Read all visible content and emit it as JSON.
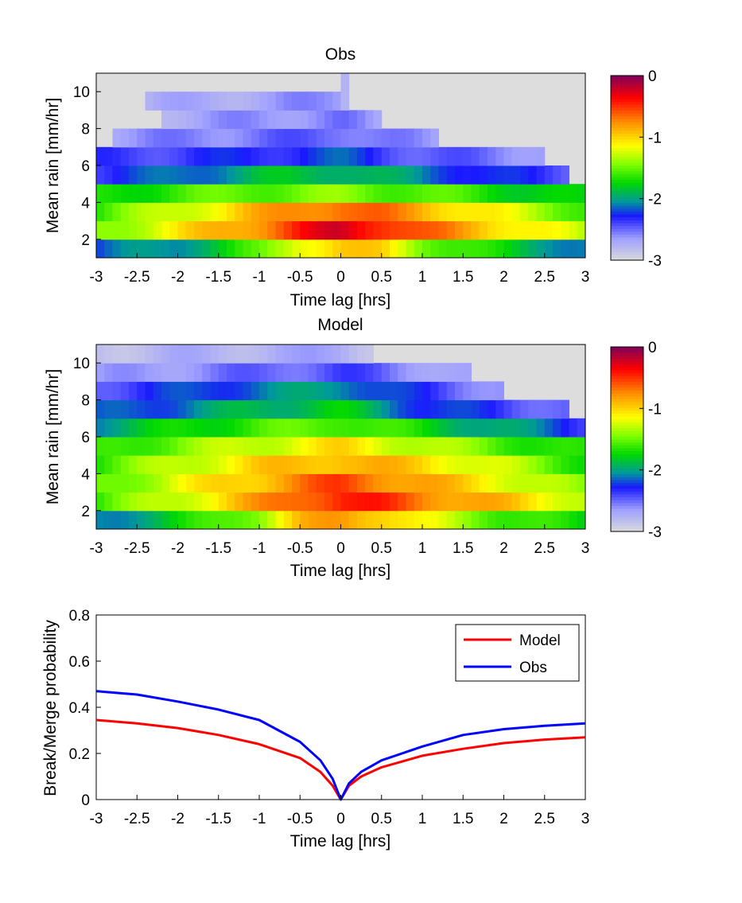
{
  "chart_data": [
    {
      "type": "heatmap",
      "title": "Obs",
      "xlabel": "Time lag [hrs]",
      "ylabel": "Mean rain [mm/hr]",
      "xlim": [
        -3,
        3
      ],
      "ylim": [
        1,
        11
      ],
      "xticks": [
        "-3",
        "-2.5",
        "-2",
        "-1.5",
        "-1",
        "-0.5",
        "0",
        "0.5",
        "1",
        "1.5",
        "2",
        "2.5",
        "3"
      ],
      "yticks": [
        "2",
        "4",
        "6",
        "8",
        "10"
      ],
      "colorbar": {
        "range": [
          -3,
          0
        ],
        "ticks": [
          "0",
          "-1",
          "-2",
          "-3"
        ]
      },
      "rows": [
        {
          "y": 1.5,
          "from": -3,
          "to": 3,
          "profile": [
            [
              -3,
              -2.2
            ],
            [
              -2,
              -2.0
            ],
            [
              -1,
              -1.6
            ],
            [
              -0.5,
              -1.1
            ],
            [
              0,
              -0.95
            ],
            [
              0.5,
              -1.05
            ],
            [
              1,
              -1.4
            ],
            [
              2,
              -1.8
            ],
            [
              3,
              -2.1
            ]
          ]
        },
        {
          "y": 2.5,
          "from": -3,
          "to": 3,
          "profile": [
            [
              -3,
              -1.45
            ],
            [
              -2,
              -1.1
            ],
            [
              -1,
              -0.72
            ],
            [
              -0.5,
              -0.45
            ],
            [
              0,
              -0.25
            ],
            [
              0.5,
              -0.4
            ],
            [
              1,
              -0.65
            ],
            [
              2,
              -1.0
            ],
            [
              3,
              -1.35
            ]
          ]
        },
        {
          "y": 3.5,
          "from": -3,
          "to": 3,
          "profile": [
            [
              -3,
              -1.6
            ],
            [
              -2,
              -1.25
            ],
            [
              -1,
              -0.9
            ],
            [
              -0.5,
              -0.72
            ],
            [
              0,
              -0.62
            ],
            [
              0.5,
              -0.7
            ],
            [
              1,
              -0.85
            ],
            [
              2,
              -1.2
            ],
            [
              3,
              -1.55
            ]
          ]
        },
        {
          "y": 4.5,
          "from": -3,
          "to": 3,
          "profile": [
            [
              -3,
              -1.75
            ],
            [
              -2,
              -1.6
            ],
            [
              -1,
              -1.5
            ],
            [
              0,
              -1.45
            ],
            [
              1,
              -1.55
            ],
            [
              2,
              -1.7
            ],
            [
              3,
              -1.85
            ]
          ]
        },
        {
          "y": 5.5,
          "from": -3,
          "to": 2.8,
          "profile": [
            [
              -3,
              -2.3
            ],
            [
              -2,
              -2.15
            ],
            [
              -1,
              -1.9
            ],
            [
              0,
              -1.85
            ],
            [
              1,
              -2.1
            ],
            [
              2,
              -2.3
            ],
            [
              2.8,
              -2.4
            ]
          ]
        },
        {
          "y": 6.5,
          "from": -3,
          "to": 2.5,
          "profile": [
            [
              -3,
              -2.4
            ],
            [
              -1,
              -2.3
            ],
            [
              0,
              -2.2
            ],
            [
              1,
              -2.45
            ],
            [
              2.5,
              -2.6
            ]
          ]
        },
        {
          "y": 7.5,
          "from": -2.75,
          "to": 1.2,
          "profile": [
            [
              -3,
              -2.65
            ],
            [
              0,
              -2.45
            ],
            [
              1.2,
              -2.7
            ]
          ]
        },
        {
          "y": 8.5,
          "from": -2.2,
          "to": 0.5,
          "profile": [
            [
              -3,
              -2.75
            ],
            [
              0,
              -2.55
            ],
            [
              0.5,
              -2.75
            ]
          ]
        },
        {
          "y": 9.5,
          "from": -2.4,
          "to": 0.1,
          "profile": [
            [
              -3,
              -2.8
            ],
            [
              0,
              -2.6
            ],
            [
              0.1,
              -2.8
            ]
          ]
        },
        {
          "y": 10.5,
          "from": 0.0,
          "to": 0.15,
          "profile": [
            [
              0,
              -2.8
            ],
            [
              0.15,
              -2.8
            ]
          ]
        }
      ]
    },
    {
      "type": "heatmap",
      "title": "Model",
      "xlabel": "Time lag [hrs]",
      "ylabel": "Mean rain [mm/hr]",
      "xlim": [
        -3,
        3
      ],
      "ylim": [
        1,
        11
      ],
      "xticks": [
        "-3",
        "-2.5",
        "-2",
        "-1.5",
        "-1",
        "-0.5",
        "0",
        "0.5",
        "1",
        "1.5",
        "2",
        "2.5",
        "3"
      ],
      "yticks": [
        "2",
        "4",
        "6",
        "8",
        "10"
      ],
      "colorbar": {
        "range": [
          -3,
          0
        ],
        "ticks": [
          "0",
          "-1",
          "-2",
          "-3"
        ]
      },
      "rows": [
        {
          "y": 1.5,
          "from": -3,
          "to": 3,
          "profile": [
            [
              -3,
              -2.1
            ],
            [
              -2,
              -1.8
            ],
            [
              -1,
              -1.35
            ],
            [
              -0.5,
              -0.95
            ],
            [
              0,
              -0.8
            ],
            [
              0.5,
              -0.9
            ],
            [
              1,
              -1.2
            ],
            [
              2,
              -1.55
            ],
            [
              3,
              -1.8
            ]
          ]
        },
        {
          "y": 2.5,
          "from": -3,
          "to": 3,
          "profile": [
            [
              -3,
              -1.6
            ],
            [
              -2,
              -1.25
            ],
            [
              -1,
              -0.82
            ],
            [
              -0.5,
              -0.6
            ],
            [
              0,
              -0.42
            ],
            [
              0.5,
              -0.5
            ],
            [
              1,
              -0.68
            ],
            [
              2,
              -0.95
            ],
            [
              3,
              -1.25
            ]
          ]
        },
        {
          "y": 3.5,
          "from": -3,
          "to": 3,
          "profile": [
            [
              -3,
              -1.55
            ],
            [
              -2,
              -1.2
            ],
            [
              -1,
              -0.9
            ],
            [
              -0.5,
              -0.7
            ],
            [
              0,
              -0.55
            ],
            [
              0.5,
              -0.7
            ],
            [
              1,
              -0.85
            ],
            [
              2,
              -1.15
            ],
            [
              3,
              -1.5
            ]
          ]
        },
        {
          "y": 4.5,
          "from": -3,
          "to": 3,
          "profile": [
            [
              -3,
              -1.6
            ],
            [
              -2,
              -1.3
            ],
            [
              -1,
              -1.0
            ],
            [
              0,
              -0.85
            ],
            [
              1,
              -1.0
            ],
            [
              2,
              -1.3
            ],
            [
              3,
              -1.65
            ]
          ]
        },
        {
          "y": 5.5,
          "from": -3,
          "to": 3,
          "profile": [
            [
              -3,
              -1.7
            ],
            [
              -2,
              -1.45
            ],
            [
              -1,
              -1.25
            ],
            [
              0,
              -1.05
            ],
            [
              1,
              -1.3
            ],
            [
              2,
              -1.55
            ],
            [
              3,
              -1.75
            ]
          ]
        },
        {
          "y": 6.5,
          "from": -3,
          "to": 3,
          "profile": [
            [
              -3,
              -2.0
            ],
            [
              -2,
              -1.75
            ],
            [
              -1,
              -1.6
            ],
            [
              0,
              -1.5
            ],
            [
              1,
              -1.75
            ],
            [
              2,
              -2.0
            ],
            [
              3,
              -2.3
            ]
          ]
        },
        {
          "y": 7.5,
          "from": -3,
          "to": 2.75,
          "profile": [
            [
              -3,
              -2.25
            ],
            [
              -2,
              -2.1
            ],
            [
              -1,
              -1.9
            ],
            [
              0,
              -1.8
            ],
            [
              1,
              -2.2
            ],
            [
              2,
              -2.35
            ],
            [
              2.75,
              -2.5
            ]
          ]
        },
        {
          "y": 8.5,
          "from": -3,
          "to": 2.0,
          "profile": [
            [
              -3,
              -2.4
            ],
            [
              -1,
              -2.1
            ],
            [
              0,
              -2.0
            ],
            [
              1,
              -2.35
            ],
            [
              2,
              -2.6
            ]
          ]
        },
        {
          "y": 9.5,
          "from": -3,
          "to": 1.6,
          "profile": [
            [
              -3,
              -2.7
            ],
            [
              0,
              -2.4
            ],
            [
              1,
              -2.6
            ],
            [
              1.6,
              -2.75
            ]
          ]
        },
        {
          "y": 10.5,
          "from": -3,
          "to": 0.4,
          "profile": [
            [
              -3,
              -2.8
            ],
            [
              0,
              -2.7
            ],
            [
              0.4,
              -2.8
            ]
          ]
        }
      ]
    },
    {
      "type": "line",
      "xlabel": "Time lag [hrs]",
      "ylabel": "Break/Merge probability",
      "xlim": [
        -3,
        3
      ],
      "ylim": [
        0,
        0.8
      ],
      "xticks": [
        "-3",
        "-2.5",
        "-2",
        "-1.5",
        "-1",
        "-0.5",
        "0",
        "0.5",
        "1",
        "1.5",
        "2",
        "2.5",
        "3"
      ],
      "yticks": [
        "0",
        "0.2",
        "0.4",
        "0.6",
        "0.8"
      ],
      "legend": "top-right",
      "series": [
        {
          "name": "Model",
          "color": "#ff0000",
          "x": [
            -3,
            -2.5,
            -2,
            -1.5,
            -1,
            -0.5,
            -0.25,
            -0.1,
            0,
            0.1,
            0.25,
            0.5,
            1,
            1.5,
            2,
            2.5,
            3
          ],
          "y": [
            0.345,
            0.33,
            0.31,
            0.28,
            0.24,
            0.18,
            0.12,
            0.06,
            0.0,
            0.06,
            0.1,
            0.14,
            0.19,
            0.22,
            0.245,
            0.26,
            0.27
          ]
        },
        {
          "name": "Obs",
          "color": "#0000ff",
          "x": [
            -3,
            -2.5,
            -2,
            -1.5,
            -1,
            -0.5,
            -0.25,
            -0.1,
            0,
            0.1,
            0.25,
            0.5,
            1,
            1.5,
            2,
            2.5,
            3
          ],
          "y": [
            0.47,
            0.455,
            0.425,
            0.39,
            0.345,
            0.25,
            0.17,
            0.09,
            0.0,
            0.07,
            0.12,
            0.17,
            0.23,
            0.28,
            0.305,
            0.32,
            0.33
          ]
        }
      ]
    }
  ]
}
